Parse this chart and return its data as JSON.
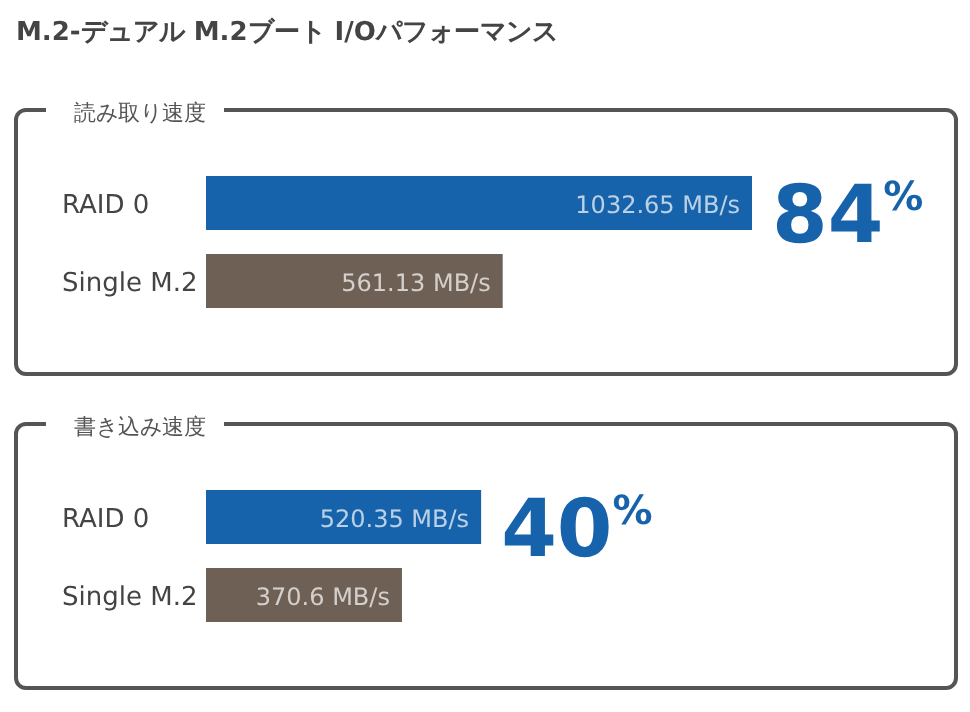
{
  "chart_data": [
    {
      "type": "bar",
      "orientation": "horizontal",
      "title": "M.2-デュアル M.2ブート I/Oパフォーマンス",
      "subtitle": "読み取り速度",
      "categories": [
        "RAID 0",
        "Single M.2"
      ],
      "values": [
        1032.65,
        561.13
      ],
      "colors": [
        "#1763ab",
        "#6e6054"
      ],
      "value_labels": [
        "1032.65 MB/s",
        "561.13 MB/s"
      ],
      "annotations": [
        "84$^{%}$"
      ]
    },
    {
      "type": "bar",
      "orientation": "horizontal",
      "subtitle": "書き込み速度",
      "categories": [
        "RAID 0",
        "Single M.2"
      ],
      "values": [
        520.35,
        370.6
      ],
      "colors": [
        "#1763ab",
        "#6e6054"
      ],
      "value_labels": [
        "520.35 MB/s",
        "370.6 MB/s"
      ],
      "annotations": [
        "40$^{%}$"
      ]
    }
  ]
}
